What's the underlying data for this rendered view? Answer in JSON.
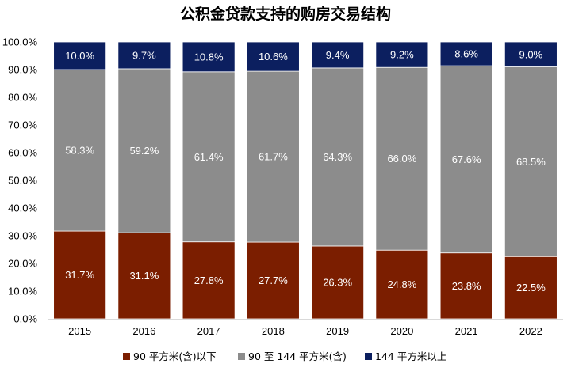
{
  "chart_data": {
    "type": "bar",
    "stacked": true,
    "title": "公积金贷款支持的购房交易结构",
    "xlabel": "",
    "ylabel": "",
    "ylim": [
      0,
      100
    ],
    "y_ticks": [
      "0.0%",
      "10.0%",
      "20.0%",
      "30.0%",
      "40.0%",
      "50.0%",
      "60.0%",
      "70.0%",
      "80.0%",
      "90.0%",
      "100.0%"
    ],
    "grid": false,
    "legend_position": "bottom",
    "categories": [
      "2015",
      "2016",
      "2017",
      "2018",
      "2019",
      "2020",
      "2021",
      "2022"
    ],
    "series": [
      {
        "name": "90 平方米(含)以下",
        "color": "#7b1e00",
        "values": [
          31.7,
          31.1,
          27.8,
          27.7,
          26.3,
          24.8,
          23.8,
          22.5
        ],
        "labels": [
          "31.7%",
          "31.1%",
          "27.8%",
          "27.7%",
          "26.3%",
          "24.8%",
          "23.8%",
          "22.5%"
        ]
      },
      {
        "name": "90 至 144 平方米(含)",
        "color": "#8c8c8c",
        "values": [
          58.3,
          59.2,
          61.4,
          61.7,
          64.3,
          66.0,
          67.6,
          68.5
        ],
        "labels": [
          "58.3%",
          "59.2%",
          "61.4%",
          "61.7%",
          "64.3%",
          "66.0%",
          "67.6%",
          "68.5%"
        ]
      },
      {
        "name": "144 平方米以上",
        "color": "#0c1f5f",
        "values": [
          10.0,
          9.7,
          10.8,
          10.6,
          9.4,
          9.2,
          8.6,
          9.0
        ],
        "labels": [
          "10.0%",
          "9.7%",
          "10.8%",
          "10.6%",
          "9.4%",
          "9.2%",
          "8.6%",
          "9.0%"
        ]
      }
    ]
  }
}
